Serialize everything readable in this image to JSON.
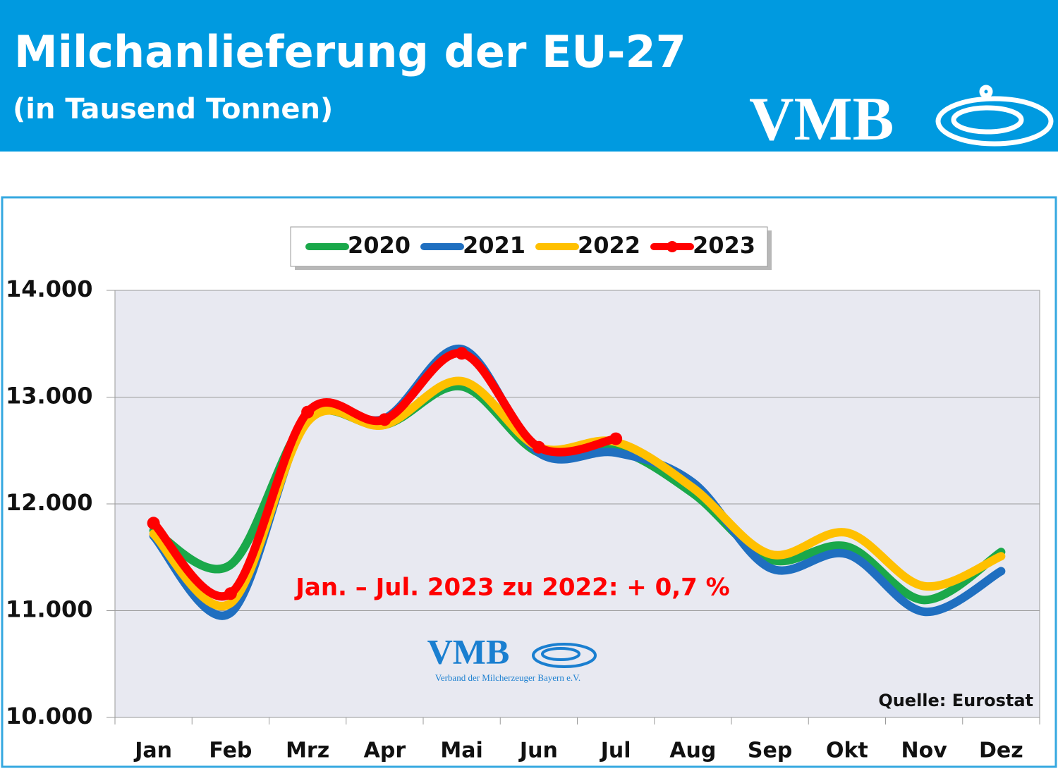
{
  "chart_data": {
    "type": "line",
    "title": "Milchanlieferung der EU-27",
    "subtitle": "(in Tausend Tonnen)",
    "logo_text": "VMB",
    "watermark_text": "VMB",
    "watermark_subtext": "Verband der Milcherzeuger Bayern e.V.",
    "annotation": "Jan. – Jul. 2023 zu 2022: + 0,7 %",
    "source": "Quelle: Eurostat",
    "categories": [
      "Jan",
      "Feb",
      "Mrz",
      "Apr",
      "Mai",
      "Jun",
      "Jul",
      "Aug",
      "Sep",
      "Okt",
      "Nov",
      "Dez"
    ],
    "series": [
      {
        "name": "2020",
        "color": "#1aa84a",
        "values": [
          11750,
          11430,
          12800,
          12740,
          13100,
          12480,
          12510,
          12100,
          11480,
          11600,
          11100,
          11550
        ]
      },
      {
        "name": "2021",
        "color": "#1f6fc0",
        "values": [
          11700,
          10980,
          12800,
          12800,
          13450,
          12480,
          12480,
          12200,
          11400,
          11530,
          10990,
          11370
        ]
      },
      {
        "name": "2022",
        "color": "#ffc000",
        "values": [
          11720,
          11070,
          12770,
          12740,
          13150,
          12530,
          12580,
          12150,
          11530,
          11730,
          11230,
          11510
        ]
      },
      {
        "name": "2023",
        "color": "#ff0000",
        "markers": true,
        "values": [
          11820,
          11160,
          12860,
          12790,
          13410,
          12530,
          12610,
          null,
          null,
          null,
          null,
          null
        ]
      }
    ],
    "ylim": [
      10000,
      14000
    ],
    "yticks": [
      {
        "value": 10000,
        "label": "10.000"
      },
      {
        "value": 11000,
        "label": "11.000"
      },
      {
        "value": 12000,
        "label": "12.000"
      },
      {
        "value": 13000,
        "label": "13.000"
      },
      {
        "value": 14000,
        "label": "14.000"
      }
    ],
    "grid": true,
    "legend": "top"
  }
}
